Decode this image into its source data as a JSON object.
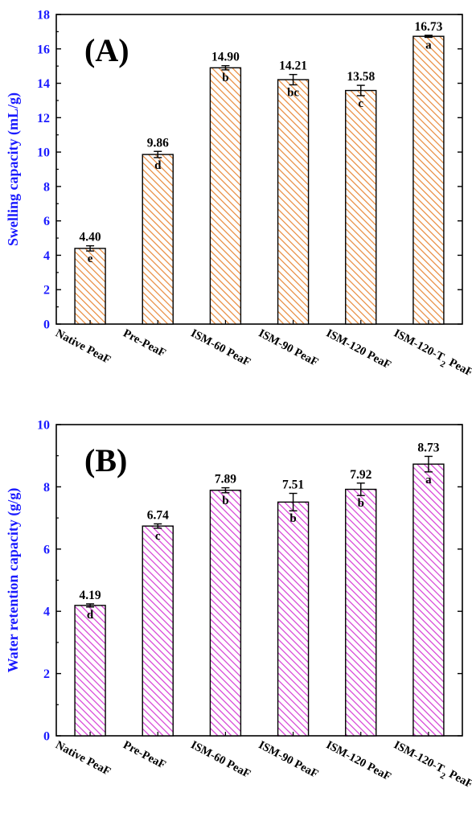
{
  "chart_data": [
    {
      "type": "bar",
      "panel_label": "(A)",
      "ylabel": "Swelling capacity (mL/g)",
      "xlabel": "",
      "ylim": [
        0,
        18
      ],
      "yticks": [
        "0",
        "2",
        "4",
        "6",
        "8",
        "10",
        "12",
        "14",
        "16",
        "18"
      ],
      "categories": [
        "Native PeaF",
        "Pre-PeaF",
        "ISM-60 PeaF",
        "ISM-90 PeaF",
        "ISM-120 PeaF",
        "ISM-120-T2 PeaF"
      ],
      "values": [
        4.4,
        9.86,
        14.9,
        14.21,
        13.58,
        16.73
      ],
      "value_labels": [
        "4.40",
        "9.86",
        "14.90",
        "14.21",
        "13.58",
        "16.73"
      ],
      "errors": [
        0.15,
        0.18,
        0.12,
        0.3,
        0.3,
        0.06
      ],
      "letters": [
        "e",
        "d",
        "b",
        "bc",
        "c",
        "a"
      ],
      "bar_color": "#e8893a",
      "hatch_color": "#e8893a"
    },
    {
      "type": "bar",
      "panel_label": "(B)",
      "ylabel": "Water retention capacity (g/g)",
      "xlabel": "",
      "ylim": [
        0,
        10
      ],
      "yticks": [
        "0",
        "2",
        "4",
        "6",
        "8",
        "10"
      ],
      "categories": [
        "Native PeaF",
        "Pre-PeaF",
        "ISM-60 PeaF",
        "ISM-90 PeaF",
        "ISM-120 PeaF",
        "ISM-120-T2 PeaF"
      ],
      "values": [
        4.19,
        6.74,
        7.89,
        7.51,
        7.92,
        8.73
      ],
      "value_labels": [
        "4.19",
        "6.74",
        "7.89",
        "7.51",
        "7.92",
        "8.73"
      ],
      "errors": [
        0.05,
        0.07,
        0.08,
        0.28,
        0.2,
        0.25
      ],
      "letters": [
        "d",
        "c",
        "b",
        "b",
        "b",
        "a"
      ],
      "bar_color": "#d63cd6",
      "hatch_color": "#d63cd6"
    }
  ]
}
